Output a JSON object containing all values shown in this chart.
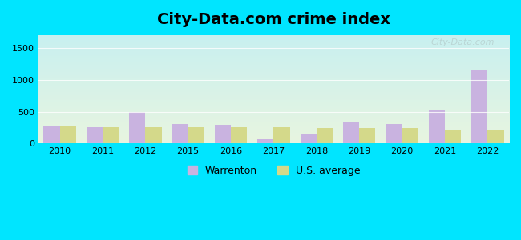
{
  "title": "City-Data.com crime index",
  "years": [
    2010,
    2011,
    2012,
    2015,
    2016,
    2017,
    2018,
    2019,
    2020,
    2021,
    2022
  ],
  "warrenton": [
    270,
    255,
    500,
    305,
    295,
    70,
    150,
    345,
    310,
    520,
    1160
  ],
  "us_average": [
    265,
    255,
    255,
    255,
    255,
    255,
    245,
    240,
    240,
    215,
    225
  ],
  "warrenton_color": "#c9b3e0",
  "us_avg_color": "#d4d98a",
  "background_outer": "#00e5ff",
  "background_inner_top": "#e8f5e0",
  "background_inner_bottom": "#c8f0f0",
  "ylim": [
    0,
    1700
  ],
  "yticks": [
    0,
    500,
    1000,
    1500
  ],
  "watermark": "City-Data.com",
  "legend_warrenton": "Warrenton",
  "legend_us": "U.S. average",
  "bar_width": 0.38,
  "title_fontsize": 14
}
